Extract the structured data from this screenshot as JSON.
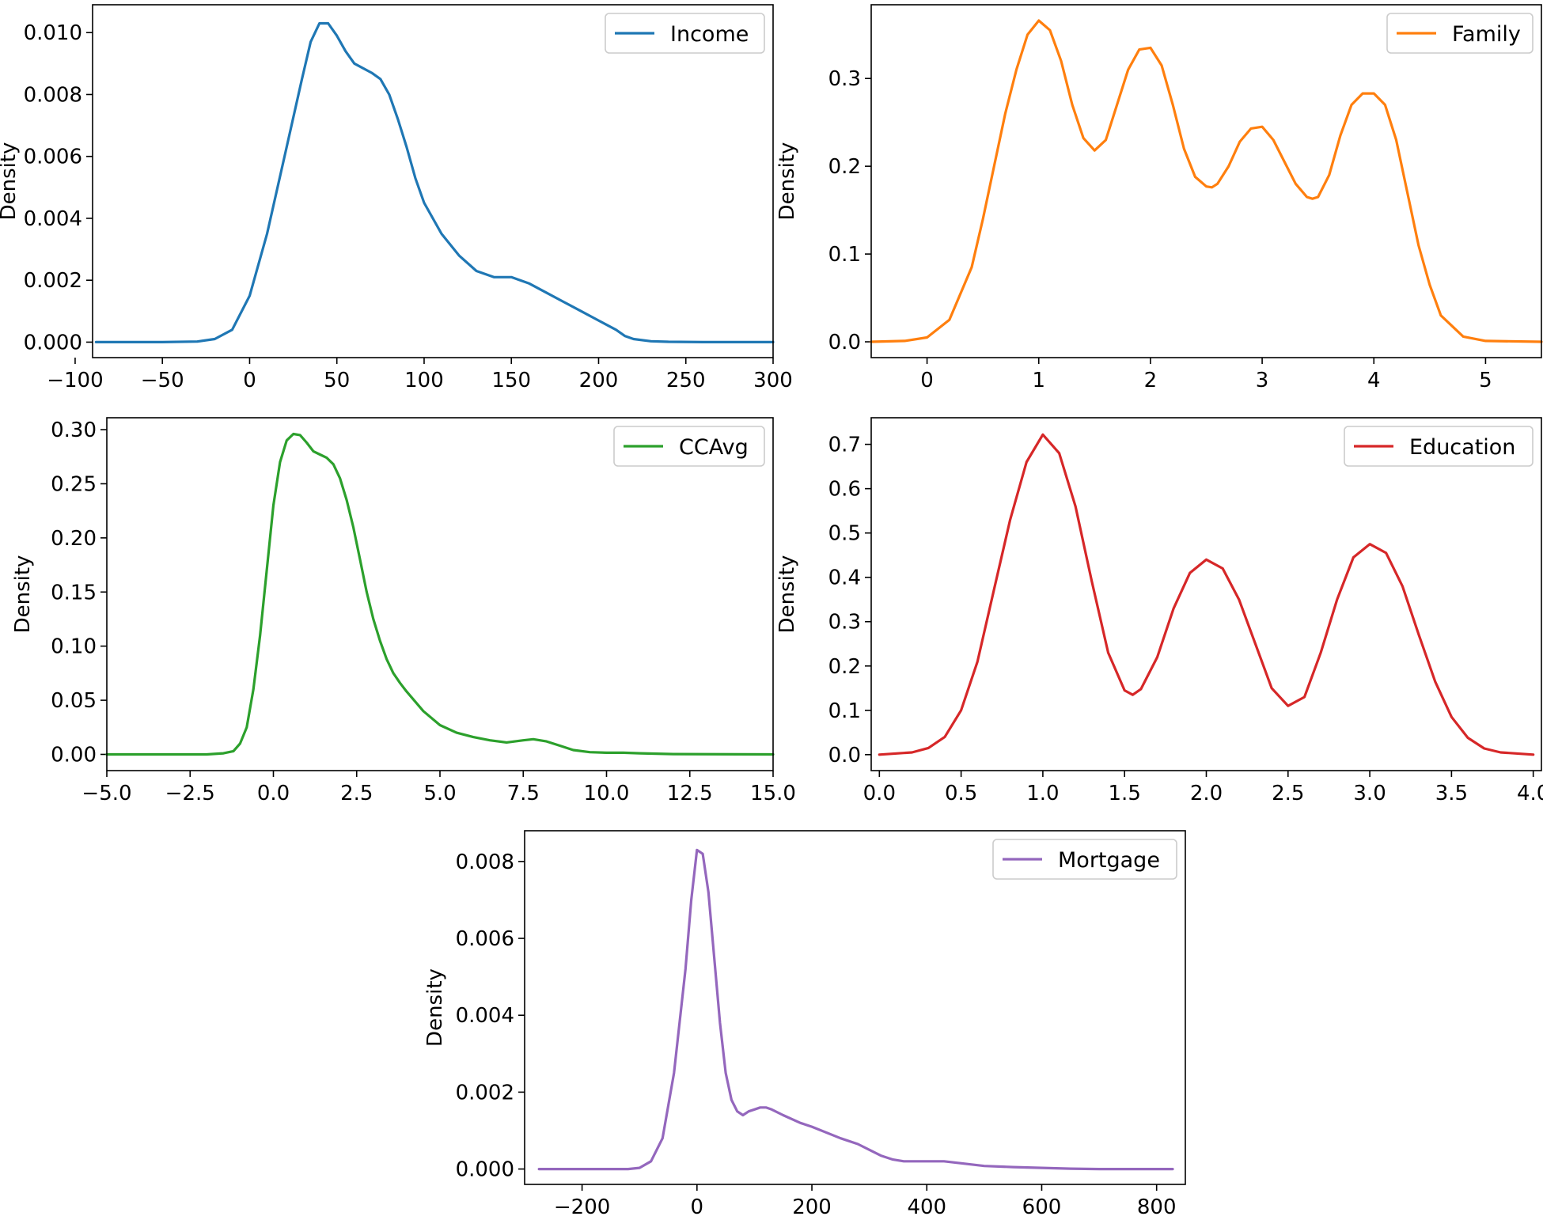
{
  "chart_data": [
    {
      "type": "line",
      "title": "",
      "xlabel": "",
      "ylabel": "Density",
      "color": "#1f77b4",
      "xlim": [
        -90,
        300
      ],
      "ylim": [
        -0.0005,
        0.0109
      ],
      "xticks": [
        -100,
        -50,
        0,
        50,
        100,
        150,
        200,
        250,
        300
      ],
      "xtick_labels": [
        "−100",
        "−50",
        "0",
        "50",
        "100",
        "150",
        "200",
        "250",
        "300"
      ],
      "yticks": [
        0,
        0.002,
        0.004,
        0.006,
        0.008,
        0.01
      ],
      "ytick_labels": [
        "0.000",
        "0.002",
        "0.004",
        "0.006",
        "0.008",
        "0.010"
      ],
      "legend_position": "top-right",
      "series": [
        {
          "name": "Income",
          "x": [
            -88,
            -50,
            -30,
            -20,
            -10,
            0,
            10,
            20,
            30,
            35,
            40,
            45,
            50,
            55,
            60,
            70,
            75,
            80,
            85,
            90,
            95,
            100,
            110,
            120,
            130,
            140,
            150,
            160,
            170,
            180,
            190,
            200,
            210,
            215,
            220,
            230,
            240,
            260,
            300
          ],
          "y": [
            0,
            0,
            2e-05,
            0.0001,
            0.0004,
            0.0015,
            0.0035,
            0.006,
            0.0085,
            0.0097,
            0.0103,
            0.0103,
            0.0099,
            0.0094,
            0.009,
            0.0087,
            0.0085,
            0.008,
            0.0072,
            0.0063,
            0.0053,
            0.0045,
            0.0035,
            0.0028,
            0.0023,
            0.0021,
            0.0021,
            0.0019,
            0.0016,
            0.0013,
            0.001,
            0.0007,
            0.0004,
            0.0002,
            0.0001,
            3e-05,
            1e-05,
            0,
            0
          ]
        }
      ]
    },
    {
      "type": "line",
      "title": "",
      "xlabel": "",
      "ylabel": "Density",
      "color": "#ff7f0e",
      "xlim": [
        -0.5,
        5.5
      ],
      "ylim": [
        -0.018,
        0.384
      ],
      "xticks": [
        0,
        1,
        2,
        3,
        4,
        5
      ],
      "xtick_labels": [
        "0",
        "1",
        "2",
        "3",
        "4",
        "5"
      ],
      "yticks": [
        0,
        0.1,
        0.2,
        0.3
      ],
      "ytick_labels": [
        "0.0",
        "0.1",
        "0.2",
        "0.3"
      ],
      "legend_position": "top-right",
      "series": [
        {
          "name": "Family",
          "x": [
            -0.5,
            -0.2,
            0,
            0.2,
            0.4,
            0.5,
            0.6,
            0.7,
            0.8,
            0.9,
            1.0,
            1.1,
            1.2,
            1.3,
            1.4,
            1.5,
            1.6,
            1.7,
            1.8,
            1.9,
            2.0,
            2.1,
            2.2,
            2.3,
            2.4,
            2.5,
            2.55,
            2.6,
            2.7,
            2.8,
            2.9,
            3.0,
            3.1,
            3.2,
            3.3,
            3.4,
            3.45,
            3.5,
            3.6,
            3.7,
            3.8,
            3.9,
            4.0,
            4.1,
            4.2,
            4.3,
            4.4,
            4.5,
            4.6,
            4.8,
            5.0,
            5.5
          ],
          "y": [
            0,
            0.001,
            0.005,
            0.025,
            0.085,
            0.14,
            0.2,
            0.26,
            0.31,
            0.35,
            0.366,
            0.355,
            0.32,
            0.27,
            0.232,
            0.218,
            0.23,
            0.27,
            0.31,
            0.333,
            0.335,
            0.315,
            0.27,
            0.22,
            0.188,
            0.177,
            0.176,
            0.18,
            0.2,
            0.228,
            0.243,
            0.245,
            0.23,
            0.205,
            0.18,
            0.165,
            0.163,
            0.165,
            0.19,
            0.235,
            0.27,
            0.283,
            0.283,
            0.27,
            0.23,
            0.17,
            0.11,
            0.065,
            0.03,
            0.006,
            0.001,
            0
          ]
        }
      ]
    },
    {
      "type": "line",
      "title": "",
      "xlabel": "",
      "ylabel": "Density",
      "color": "#2ca02c",
      "xlim": [
        -5,
        15
      ],
      "ylim": [
        -0.015,
        0.311
      ],
      "xticks": [
        -5,
        -2.5,
        0,
        2.5,
        5,
        7.5,
        10,
        12.5,
        15
      ],
      "xtick_labels": [
        "−5.0",
        "−2.5",
        "0.0",
        "2.5",
        "5.0",
        "7.5",
        "10.0",
        "12.5",
        "15.0"
      ],
      "yticks": [
        0,
        0.05,
        0.1,
        0.15,
        0.2,
        0.25,
        0.3
      ],
      "ytick_labels": [
        "0.00",
        "0.05",
        "0.10",
        "0.15",
        "0.20",
        "0.25",
        "0.30"
      ],
      "legend_position": "top-right",
      "series": [
        {
          "name": "CCAvg",
          "x": [
            -5,
            -2,
            -1.5,
            -1.2,
            -1.0,
            -0.8,
            -0.6,
            -0.4,
            -0.2,
            0,
            0.2,
            0.4,
            0.6,
            0.8,
            1.0,
            1.2,
            1.4,
            1.6,
            1.8,
            2.0,
            2.2,
            2.4,
            2.6,
            2.8,
            3.0,
            3.2,
            3.4,
            3.6,
            3.8,
            4.0,
            4.5,
            5.0,
            5.5,
            6.0,
            6.5,
            7.0,
            7.5,
            7.8,
            8.2,
            8.6,
            9.0,
            9.5,
            10.0,
            10.5,
            11,
            12,
            15
          ],
          "y": [
            0,
            0,
            0.001,
            0.003,
            0.01,
            0.025,
            0.06,
            0.11,
            0.17,
            0.23,
            0.27,
            0.29,
            0.296,
            0.295,
            0.288,
            0.28,
            0.277,
            0.274,
            0.268,
            0.255,
            0.235,
            0.21,
            0.18,
            0.15,
            0.125,
            0.105,
            0.088,
            0.075,
            0.066,
            0.058,
            0.04,
            0.027,
            0.02,
            0.016,
            0.013,
            0.011,
            0.013,
            0.014,
            0.012,
            0.008,
            0.004,
            0.002,
            0.0015,
            0.0015,
            0.001,
            0.0003,
            0
          ]
        }
      ]
    },
    {
      "type": "line",
      "title": "",
      "xlabel": "",
      "ylabel": "Density",
      "color": "#d62728",
      "xlim": [
        -0.05,
        4.05
      ],
      "ylim": [
        -0.036,
        0.76
      ],
      "xticks": [
        0,
        0.5,
        1,
        1.5,
        2,
        2.5,
        3,
        3.5,
        4
      ],
      "xtick_labels": [
        "0.0",
        "0.5",
        "1.0",
        "1.5",
        "2.0",
        "2.5",
        "3.0",
        "3.5",
        "4.0"
      ],
      "yticks": [
        0,
        0.1,
        0.2,
        0.3,
        0.4,
        0.5,
        0.6,
        0.7
      ],
      "ytick_labels": [
        "0.0",
        "0.1",
        "0.2",
        "0.3",
        "0.4",
        "0.5",
        "0.6",
        "0.7"
      ],
      "legend_position": "top-right",
      "series": [
        {
          "name": "Education",
          "x": [
            0,
            0.2,
            0.3,
            0.4,
            0.5,
            0.6,
            0.7,
            0.8,
            0.9,
            1.0,
            1.1,
            1.2,
            1.3,
            1.4,
            1.5,
            1.55,
            1.6,
            1.7,
            1.8,
            1.9,
            2.0,
            2.1,
            2.2,
            2.3,
            2.4,
            2.5,
            2.6,
            2.7,
            2.8,
            2.9,
            3.0,
            3.1,
            3.2,
            3.3,
            3.4,
            3.5,
            3.6,
            3.7,
            3.8,
            4.0
          ],
          "y": [
            0,
            0.005,
            0.015,
            0.04,
            0.1,
            0.21,
            0.37,
            0.53,
            0.66,
            0.722,
            0.68,
            0.56,
            0.39,
            0.23,
            0.145,
            0.135,
            0.148,
            0.22,
            0.33,
            0.41,
            0.44,
            0.42,
            0.35,
            0.25,
            0.15,
            0.11,
            0.13,
            0.23,
            0.35,
            0.445,
            0.475,
            0.455,
            0.38,
            0.27,
            0.165,
            0.085,
            0.038,
            0.014,
            0.005,
            0
          ]
        }
      ]
    },
    {
      "type": "line",
      "title": "",
      "xlabel": "",
      "ylabel": "Density",
      "color": "#9467bd",
      "xlim": [
        -300,
        850
      ],
      "ylim": [
        -0.0004,
        0.0088
      ],
      "xticks": [
        -200,
        0,
        200,
        400,
        600,
        800
      ],
      "xtick_labels": [
        "−200",
        "0",
        "200",
        "400",
        "600",
        "800"
      ],
      "yticks": [
        0,
        0.002,
        0.004,
        0.006,
        0.008
      ],
      "ytick_labels": [
        "0.000",
        "0.002",
        "0.004",
        "0.006",
        "0.008"
      ],
      "legend_position": "top-right",
      "series": [
        {
          "name": "Mortgage",
          "x": [
            -275,
            -120,
            -100,
            -80,
            -60,
            -40,
            -20,
            -10,
            0,
            10,
            20,
            30,
            40,
            50,
            60,
            70,
            80,
            90,
            100,
            110,
            120,
            130,
            150,
            180,
            200,
            250,
            280,
            300,
            320,
            340,
            360,
            380,
            400,
            430,
            460,
            500,
            550,
            600,
            650,
            700,
            828
          ],
          "y": [
            0,
            0,
            3e-05,
            0.0002,
            0.0008,
            0.0025,
            0.0052,
            0.007,
            0.0083,
            0.0082,
            0.0072,
            0.0055,
            0.0038,
            0.0025,
            0.0018,
            0.0015,
            0.0014,
            0.0015,
            0.00155,
            0.0016,
            0.0016,
            0.00155,
            0.0014,
            0.0012,
            0.0011,
            0.0008,
            0.00065,
            0.0005,
            0.00035,
            0.00025,
            0.0002,
            0.0002,
            0.0002,
            0.0002,
            0.00015,
            8e-05,
            5e-05,
            3e-05,
            1e-05,
            0,
            0
          ]
        }
      ]
    }
  ]
}
